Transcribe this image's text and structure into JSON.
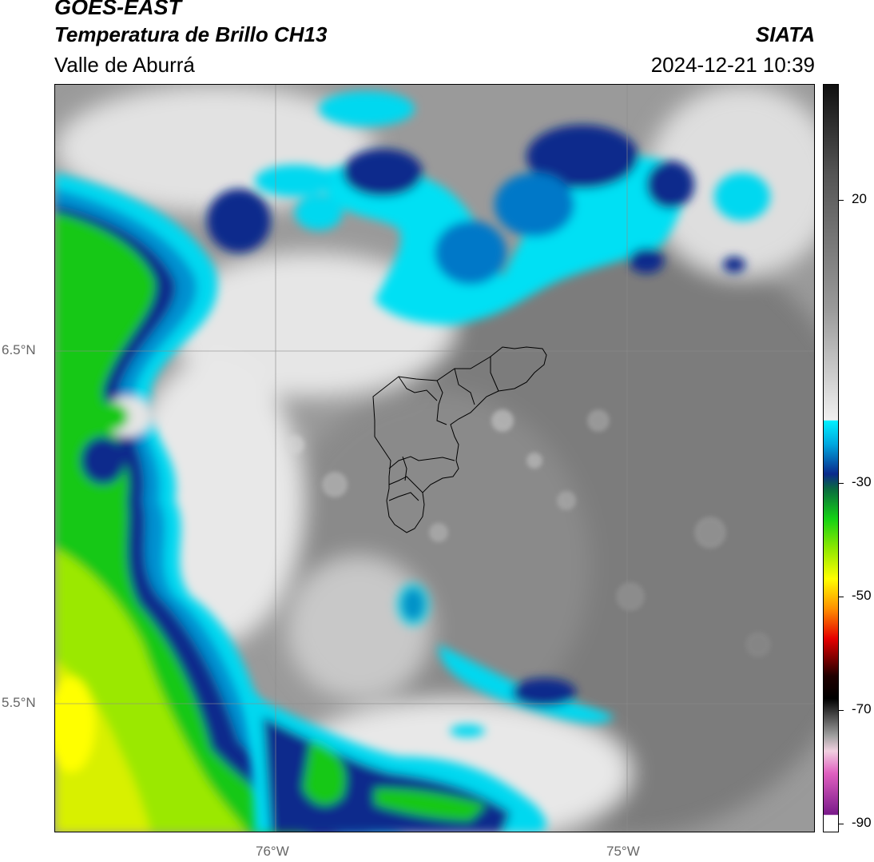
{
  "header": {
    "title_line1": "GOES-EAST",
    "title_line2": "Temperatura de Brillo CH13",
    "subtitle": "Valle de Aburrá",
    "brand": "SIATA",
    "datetime": "2024-12-21 10:39"
  },
  "axes": {
    "lat_labels": [
      "6.5°N",
      "5.5°N"
    ],
    "lon_labels": [
      "76°W",
      "75°W"
    ],
    "gridlines": true
  },
  "colorbar": {
    "tick_labels": [
      "20",
      "-30",
      "-50",
      "-70",
      "-90"
    ],
    "colors": {
      "warm_gray": "#7a7a7a",
      "light_gray": "#e6e6e6",
      "cyan": "#00e5ff",
      "blue": "#0078c8",
      "dark_blue": "#0b2a8c",
      "green": "#14d214",
      "yellow_green": "#c8f000",
      "yellow": "#ffff00",
      "orange": "#ff8c00",
      "red": "#e60000",
      "dark_red": "#400000",
      "magenta": "#e060c0",
      "purple": "#7a1a8a"
    }
  },
  "map": {
    "overlay": "Valle de Aburrá municipal boundaries"
  }
}
